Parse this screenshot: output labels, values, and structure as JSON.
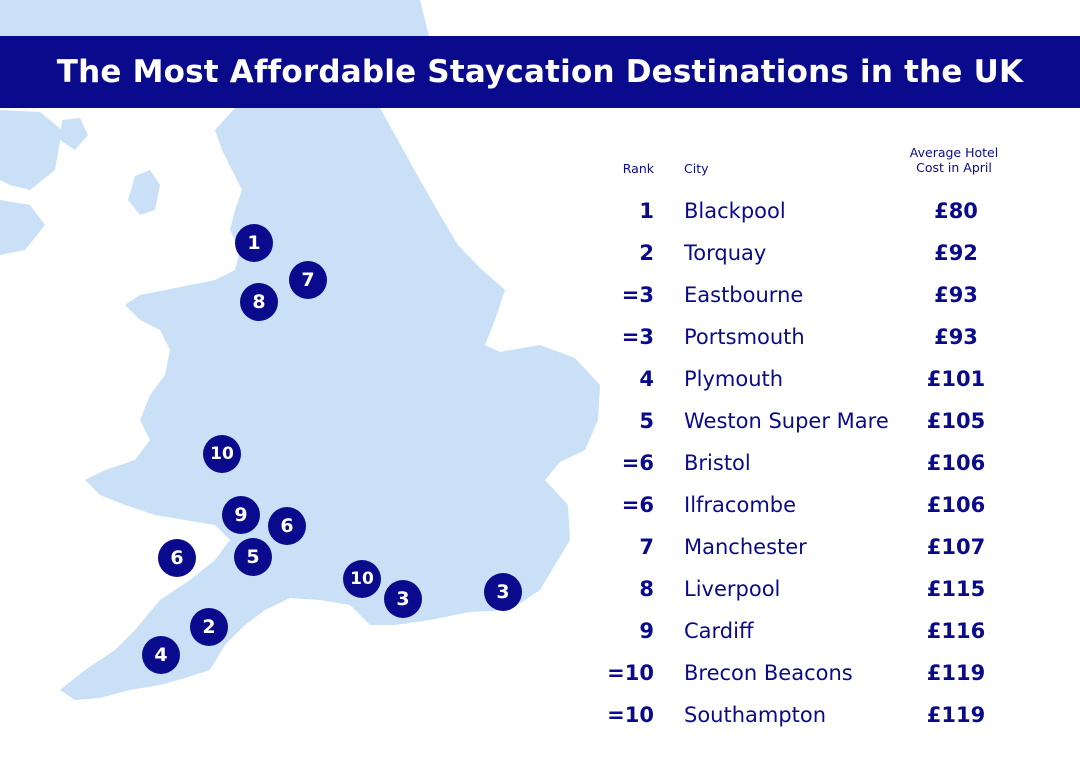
{
  "title": "The Most Affordable Staycation Destinations in the UK",
  "colors": {
    "navy": "#0a0a8c",
    "land": "#c9e0f7",
    "background": "#ffffff"
  },
  "table": {
    "header": {
      "rank": "Rank",
      "city": "City",
      "cost_line1": "Average Hotel",
      "cost_line2": "Cost in April"
    },
    "rows": [
      {
        "rank": "1",
        "city": "Blackpool",
        "cost": "£80"
      },
      {
        "rank": "2",
        "city": "Torquay",
        "cost": "£92"
      },
      {
        "rank": "=3",
        "city": "Eastbourne",
        "cost": "£93"
      },
      {
        "rank": "=3",
        "city": "Portsmouth",
        "cost": "£93"
      },
      {
        "rank": "4",
        "city": "Plymouth",
        "cost": "£101"
      },
      {
        "rank": "5",
        "city": "Weston Super Mare",
        "cost": "£105"
      },
      {
        "rank": "=6",
        "city": "Bristol",
        "cost": "£106"
      },
      {
        "rank": "=6",
        "city": "Ilfracombe",
        "cost": "£106"
      },
      {
        "rank": "7",
        "city": "Manchester",
        "cost": "£107"
      },
      {
        "rank": "8",
        "city": "Liverpool",
        "cost": "£115"
      },
      {
        "rank": "9",
        "city": "Cardiff",
        "cost": "£116"
      },
      {
        "rank": "=10",
        "city": "Brecon Beacons",
        "cost": "£119"
      },
      {
        "rank": "=10",
        "city": "Southampton",
        "cost": "£119"
      }
    ]
  },
  "map": {
    "markers": [
      {
        "label": "1",
        "city": "Blackpool"
      },
      {
        "label": "7",
        "city": "Manchester"
      },
      {
        "label": "8",
        "city": "Liverpool"
      },
      {
        "label": "10",
        "city": "Brecon Beacons"
      },
      {
        "label": "9",
        "city": "Cardiff"
      },
      {
        "label": "6",
        "city": "Bristol"
      },
      {
        "label": "6",
        "city": "Ilfracombe"
      },
      {
        "label": "5",
        "city": "Weston Super Mare"
      },
      {
        "label": "10",
        "city": "Southampton"
      },
      {
        "label": "3",
        "city": "Portsmouth"
      },
      {
        "label": "3",
        "city": "Eastbourne"
      },
      {
        "label": "2",
        "city": "Torquay"
      },
      {
        "label": "4",
        "city": "Plymouth"
      }
    ]
  }
}
